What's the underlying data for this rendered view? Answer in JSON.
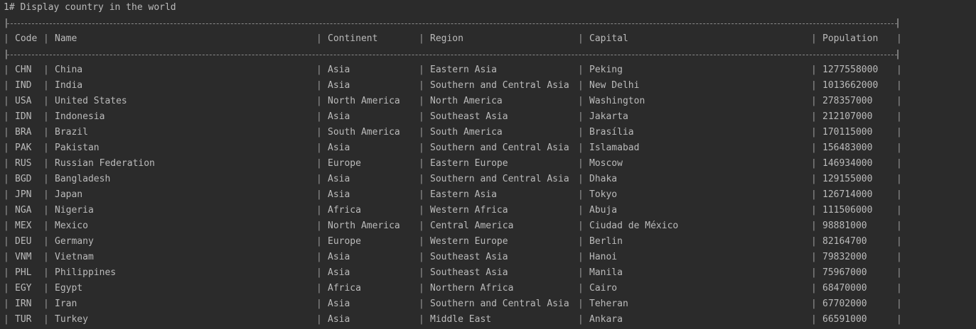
{
  "console": {
    "title": "1# Display country in the world",
    "separator_left": "|",
    "separator_right": "|",
    "columns": {
      "code": "Code",
      "name": "Name",
      "continent": "Continent",
      "region": "Region",
      "capital": "Capital",
      "population": "Population"
    },
    "rows": [
      {
        "code": "CHN",
        "name": "China",
        "continent": "Asia",
        "region": "Eastern Asia",
        "capital": "Peking",
        "population": "1277558000"
      },
      {
        "code": "IND",
        "name": "India",
        "continent": "Asia",
        "region": "Southern and Central Asia",
        "capital": "New Delhi",
        "population": "1013662000"
      },
      {
        "code": "USA",
        "name": "United States",
        "continent": "North America",
        "region": "North America",
        "capital": "Washington",
        "population": "278357000"
      },
      {
        "code": "IDN",
        "name": "Indonesia",
        "continent": "Asia",
        "region": "Southeast Asia",
        "capital": "Jakarta",
        "population": "212107000"
      },
      {
        "code": "BRA",
        "name": "Brazil",
        "continent": "South America",
        "region": "South America",
        "capital": "Brasília",
        "population": "170115000"
      },
      {
        "code": "PAK",
        "name": "Pakistan",
        "continent": "Asia",
        "region": "Southern and Central Asia",
        "capital": "Islamabad",
        "population": "156483000"
      },
      {
        "code": "RUS",
        "name": "Russian Federation",
        "continent": "Europe",
        "region": "Eastern Europe",
        "capital": "Moscow",
        "population": "146934000"
      },
      {
        "code": "BGD",
        "name": "Bangladesh",
        "continent": "Asia",
        "region": "Southern and Central Asia",
        "capital": "Dhaka",
        "population": "129155000"
      },
      {
        "code": "JPN",
        "name": "Japan",
        "continent": "Asia",
        "region": "Eastern Asia",
        "capital": "Tokyo",
        "population": "126714000"
      },
      {
        "code": "NGA",
        "name": "Nigeria",
        "continent": "Africa",
        "region": "Western Africa",
        "capital": "Abuja",
        "population": "111506000"
      },
      {
        "code": "MEX",
        "name": "Mexico",
        "continent": "North America",
        "region": "Central America",
        "capital": "Ciudad de México",
        "population": "98881000"
      },
      {
        "code": "DEU",
        "name": "Germany",
        "continent": "Europe",
        "region": "Western Europe",
        "capital": "Berlin",
        "population": "82164700"
      },
      {
        "code": "VNM",
        "name": "Vietnam",
        "continent": "Asia",
        "region": "Southeast Asia",
        "capital": "Hanoi",
        "population": "79832000"
      },
      {
        "code": "PHL",
        "name": "Philippines",
        "continent": "Asia",
        "region": "Southeast Asia",
        "capital": "Manila",
        "population": "75967000"
      },
      {
        "code": "EGY",
        "name": "Egypt",
        "continent": "Africa",
        "region": "Northern Africa",
        "capital": "Cairo",
        "population": "68470000"
      },
      {
        "code": "IRN",
        "name": "Iran",
        "continent": "Asia",
        "region": "Southern and Central Asia",
        "capital": "Teheran",
        "population": "67702000"
      },
      {
        "code": "TUR",
        "name": "Turkey",
        "continent": "Asia",
        "region": "Middle East",
        "capital": "Ankara",
        "population": "66591000"
      }
    ],
    "colors": {
      "background": "#2b2b2b",
      "text": "#bbbbbb"
    }
  }
}
